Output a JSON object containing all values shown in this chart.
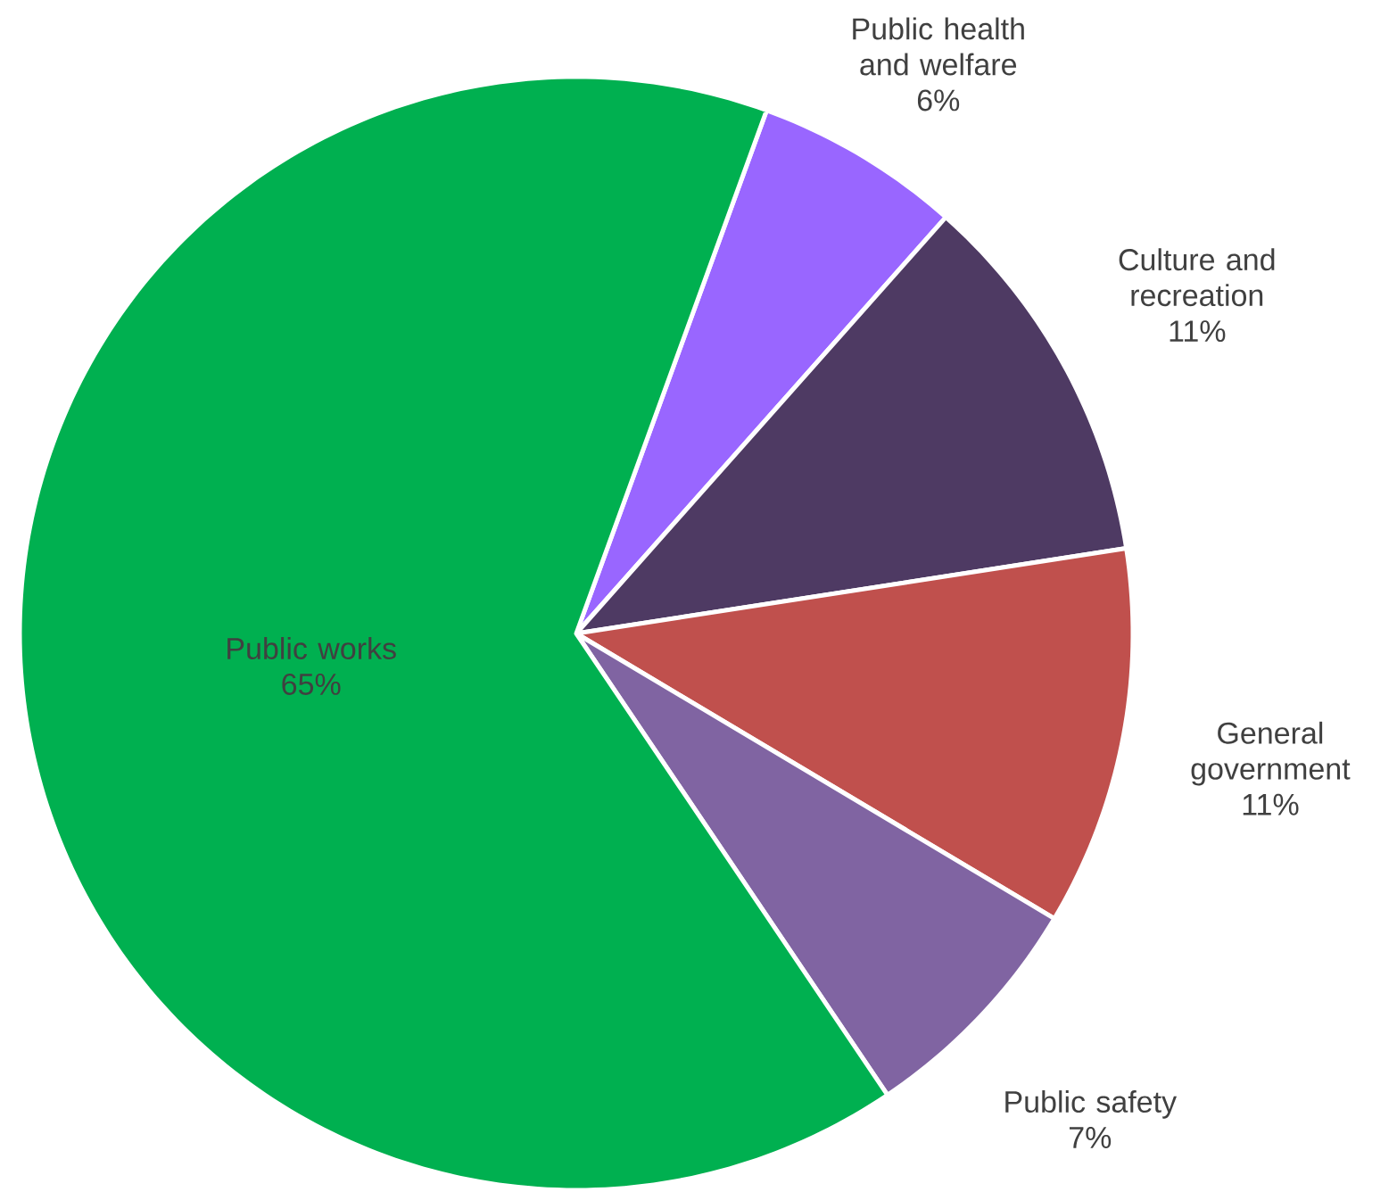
{
  "chart_data": {
    "type": "pie",
    "categories": [
      "Public health and welfare",
      "Culture and recreation",
      "General government",
      "Public safety",
      "Public works"
    ],
    "values": [
      6,
      11,
      11,
      7,
      65
    ],
    "colors": [
      "#9966ff",
      "#4e3a63",
      "#c0504d",
      "#8064a2",
      "#00b050"
    ],
    "value_labels": [
      "6%",
      "11%",
      "11%",
      "7%",
      "65%"
    ]
  }
}
